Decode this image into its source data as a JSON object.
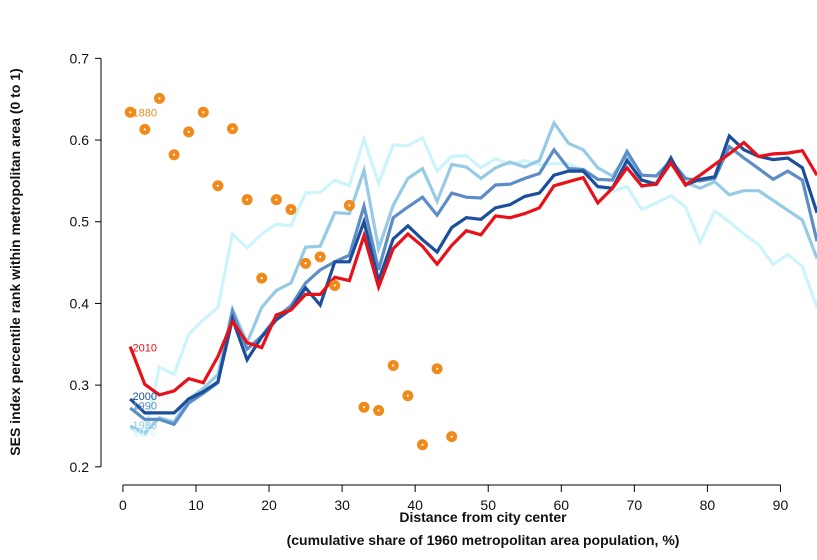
{
  "chart_data": {
    "type": "line",
    "title": "",
    "xlabel": "Distance from city center",
    "xlabel_sub": "(cumulative share of 1960 metropolitan area population, %)",
    "ylabel": "SES index percentile rank within metropolitan area (0 to 1)",
    "xlim": [
      -3,
      95
    ],
    "ylim": [
      0.19,
      0.72
    ],
    "xticks": [
      0,
      10,
      20,
      30,
      40,
      50,
      60,
      70,
      80,
      90
    ],
    "yticks": [
      0.2,
      0.3,
      0.4,
      0.5,
      0.6,
      0.7
    ],
    "grid": false,
    "x": [
      1,
      3,
      5,
      7,
      9,
      11,
      13,
      15,
      17,
      19,
      21,
      23,
      25,
      27,
      29,
      31,
      33,
      35,
      37,
      39,
      41,
      43,
      45,
      47,
      49,
      51,
      53,
      55,
      57,
      59,
      61,
      63,
      65,
      67,
      69,
      71,
      73,
      75,
      77,
      79,
      81,
      83,
      85,
      87,
      89,
      91,
      93,
      95
    ],
    "series": [
      {
        "name": "1970",
        "color": "#ccf5fb",
        "values": [
          0.247,
          0.239,
          0.322,
          0.313,
          0.362,
          0.38,
          0.395,
          0.485,
          0.468,
          0.485,
          0.497,
          0.495,
          0.535,
          0.536,
          0.551,
          0.544,
          0.601,
          0.547,
          0.594,
          0.593,
          0.603,
          0.562,
          0.58,
          0.581,
          0.566,
          0.577,
          0.57,
          0.575,
          0.57,
          0.571,
          0.571,
          0.562,
          0.542,
          0.537,
          0.543,
          0.515,
          0.523,
          0.532,
          0.518,
          0.475,
          0.513,
          0.5,
          0.485,
          0.472,
          0.448,
          0.46,
          0.445,
          0.395
        ]
      },
      {
        "name": "1980",
        "color": "#97cbe5",
        "values": [
          0.25,
          0.241,
          0.26,
          0.255,
          0.283,
          0.296,
          0.313,
          0.393,
          0.352,
          0.395,
          0.416,
          0.425,
          0.469,
          0.47,
          0.511,
          0.51,
          0.563,
          0.467,
          0.52,
          0.553,
          0.565,
          0.525,
          0.57,
          0.567,
          0.553,
          0.566,
          0.573,
          0.567,
          0.575,
          0.621,
          0.596,
          0.588,
          0.566,
          0.556,
          0.582,
          0.543,
          0.548,
          0.572,
          0.548,
          0.541,
          0.549,
          0.533,
          0.538,
          0.538,
          0.526,
          0.514,
          0.502,
          0.455
        ]
      },
      {
        "name": "1990",
        "color": "#5d8dc7",
        "values": [
          0.272,
          0.258,
          0.258,
          0.252,
          0.278,
          0.29,
          0.303,
          0.39,
          0.344,
          0.36,
          0.383,
          0.397,
          0.425,
          0.441,
          0.451,
          0.459,
          0.519,
          0.441,
          0.505,
          0.518,
          0.53,
          0.508,
          0.535,
          0.53,
          0.529,
          0.545,
          0.546,
          0.553,
          0.559,
          0.588,
          0.565,
          0.564,
          0.552,
          0.551,
          0.586,
          0.557,
          0.556,
          0.575,
          0.553,
          0.55,
          0.553,
          0.592,
          0.578,
          0.565,
          0.552,
          0.562,
          0.551,
          0.476
        ]
      },
      {
        "name": "2000",
        "color": "#1b4f9c",
        "values": [
          0.283,
          0.266,
          0.266,
          0.266,
          0.283,
          0.292,
          0.304,
          0.381,
          0.331,
          0.359,
          0.38,
          0.393,
          0.419,
          0.398,
          0.451,
          0.451,
          0.5,
          0.428,
          0.479,
          0.495,
          0.478,
          0.463,
          0.493,
          0.505,
          0.503,
          0.517,
          0.521,
          0.531,
          0.535,
          0.557,
          0.562,
          0.562,
          0.543,
          0.541,
          0.575,
          0.551,
          0.546,
          0.578,
          0.545,
          0.552,
          0.555,
          0.605,
          0.588,
          0.58,
          0.576,
          0.578,
          0.566,
          0.511
        ]
      },
      {
        "name": "2010",
        "color": "#e8111a",
        "values": [
          0.347,
          0.301,
          0.288,
          0.293,
          0.308,
          0.303,
          0.335,
          0.378,
          0.352,
          0.346,
          0.386,
          0.392,
          0.411,
          0.411,
          0.432,
          0.428,
          0.483,
          0.42,
          0.467,
          0.485,
          0.47,
          0.448,
          0.471,
          0.489,
          0.484,
          0.507,
          0.505,
          0.51,
          0.517,
          0.544,
          0.549,
          0.554,
          0.523,
          0.541,
          0.566,
          0.544,
          0.546,
          0.572,
          0.545,
          0.557,
          0.57,
          0.583,
          0.597,
          0.58,
          0.583,
          0.584,
          0.587,
          0.557
        ]
      }
    ],
    "points_1880": {
      "name": "1880",
      "color": "#f08a1a",
      "x": [
        1,
        3,
        5,
        7,
        9,
        11,
        13,
        15,
        17,
        19,
        21,
        23,
        25,
        27,
        29,
        31,
        33,
        35,
        37,
        39,
        41,
        43,
        45
      ],
      "y": [
        0.634,
        0.613,
        0.651,
        0.582,
        0.61,
        0.634,
        0.544,
        0.614,
        0.527,
        0.431,
        0.527,
        0.515,
        0.449,
        0.457,
        0.422,
        0.52,
        0.273,
        0.269,
        0.324,
        0.287,
        0.227,
        0.32,
        0.237
      ]
    },
    "labels": [
      {
        "text": "1880",
        "color": "#f08a1a",
        "y": 0.634
      },
      {
        "text": "2010",
        "color": "#e8111a",
        "y": 0.346
      },
      {
        "text": "2000",
        "color": "#1b4f9c",
        "y": 0.287
      },
      {
        "text": "1990",
        "color": "#5d8dc7",
        "y": 0.275
      },
      {
        "text": "1980",
        "color": "#97cbe5",
        "y": 0.251
      },
      {
        "text": "1970",
        "color": "#ccf5fb",
        "y": 0.242
      }
    ]
  }
}
